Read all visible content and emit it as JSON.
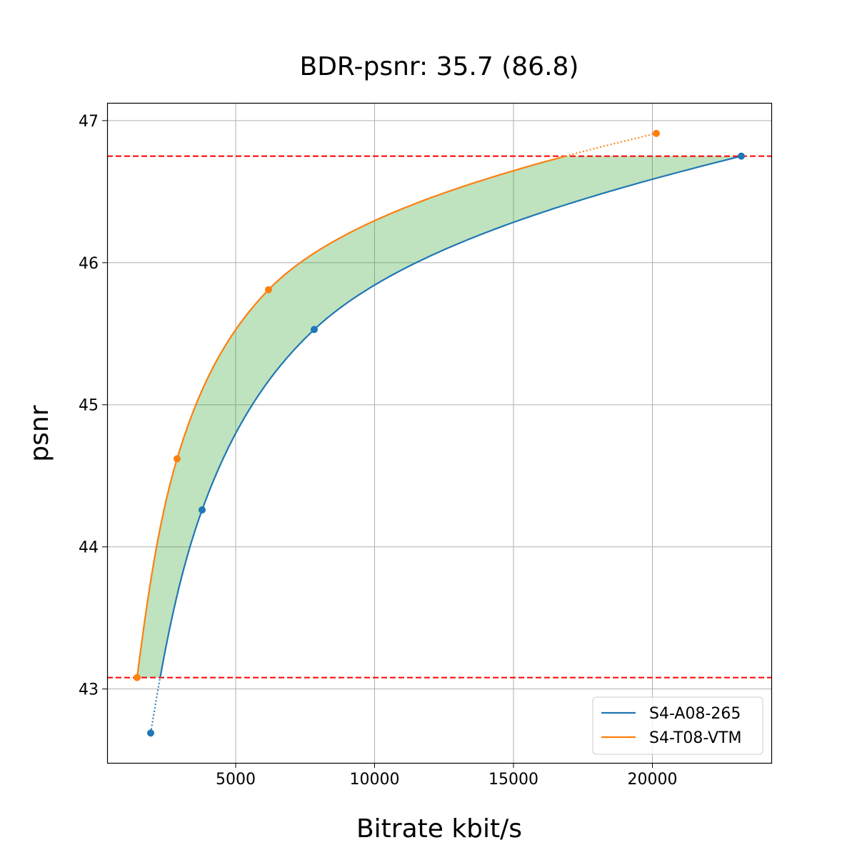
{
  "chart_data": {
    "type": "line",
    "title": "BDR-psnr: 35.7 (86.8)",
    "xlabel": "Bitrate kbit/s",
    "ylabel": "psnr",
    "xlim": [
      373,
      24280
    ],
    "ylim": [
      42.48,
      47.12
    ],
    "xticks": [
      5000,
      10000,
      15000,
      20000
    ],
    "yticks": [
      43,
      44,
      45,
      46,
      47
    ],
    "grid": true,
    "legend_position": "lower-right",
    "series": [
      {
        "name": "S4-A08-265",
        "color": "#1f77b4",
        "x": [
          1941,
          3792,
          7828,
          23200
        ],
        "y": [
          42.69,
          44.26,
          45.53,
          46.75
        ]
      },
      {
        "name": "S4-T08-VTM",
        "color": "#ff7f0e",
        "x": [
          1452,
          2892,
          6183,
          20141
        ],
        "y": [
          43.08,
          44.62,
          45.81,
          46.91
        ]
      }
    ],
    "hlines": {
      "values": [
        43.08,
        46.75
      ],
      "color": "#ff0000",
      "style": "dashed"
    },
    "fill_between": {
      "range": [
        43.08,
        46.75
      ],
      "color": "#2ca02c"
    }
  }
}
